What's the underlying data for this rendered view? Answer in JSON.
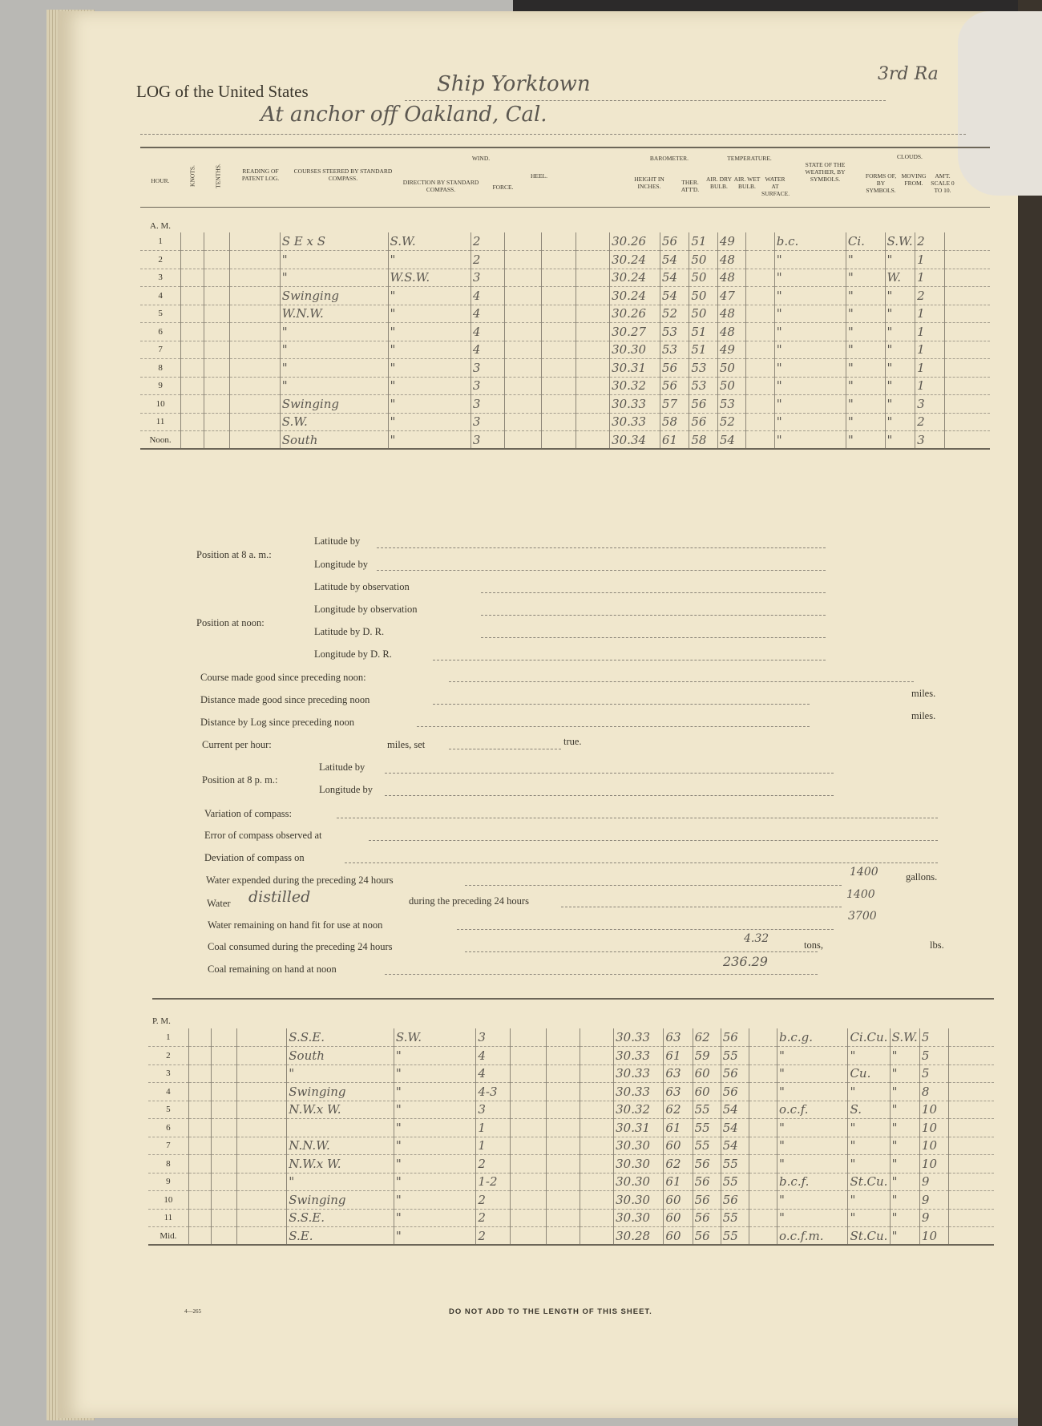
{
  "header": {
    "log_of": "LOG of the United States",
    "ship": "Ship Yorktown",
    "rate": "3rd Ra",
    "location": "At anchor off Oakland, Cal."
  },
  "columns": {
    "hour": "Hour.",
    "knots": "Knots.",
    "tenths": "Tenths.",
    "patent_log": "Reading of Patent Log.",
    "courses": "Courses steered by standard compass.",
    "wind": "Wind.",
    "direction": "Direction by standard compass.",
    "force": "Force.",
    "heel": "Heel.",
    "barometer": "Barometer.",
    "height": "Height in inches.",
    "ther": "Ther. att'd.",
    "temperature": "Temperature.",
    "dry": "Air. dry bulb.",
    "wet": "Air. wet bulb.",
    "water": "Water at surface.",
    "weather": "State of the weather, by symbols.",
    "clouds": "Clouds.",
    "forms": "Forms of, by symbols.",
    "moving": "Moving from.",
    "amt": "Am't. scale 0 to 10."
  },
  "am": {
    "label": "A. M.",
    "rows": [
      [
        "1",
        "S E x S",
        "S.W.",
        "2",
        "30.26",
        "56",
        "51",
        "49",
        "",
        "b.c.",
        "Ci.",
        "S.W.",
        "2"
      ],
      [
        "2",
        "\"",
        "\"",
        "2",
        "30.24",
        "54",
        "50",
        "48",
        "",
        "\"",
        "\"",
        "\"",
        "1"
      ],
      [
        "3",
        "\"",
        "W.S.W.",
        "3",
        "30.24",
        "54",
        "50",
        "48",
        "",
        "\"",
        "\"",
        "W.",
        "1"
      ],
      [
        "4",
        "Swinging",
        "\"",
        "4",
        "30.24",
        "54",
        "50",
        "47",
        "",
        "\"",
        "\"",
        "\"",
        "2"
      ],
      [
        "5",
        "W.N.W.",
        "\"",
        "4",
        "30.26",
        "52",
        "50",
        "48",
        "",
        "\"",
        "\"",
        "\"",
        "1"
      ],
      [
        "6",
        "\"",
        "\"",
        "4",
        "30.27",
        "53",
        "51",
        "48",
        "",
        "\"",
        "\"",
        "\"",
        "1"
      ],
      [
        "7",
        "\"",
        "\"",
        "4",
        "30.30",
        "53",
        "51",
        "49",
        "",
        "\"",
        "\"",
        "\"",
        "1"
      ],
      [
        "8",
        "\"",
        "\"",
        "3",
        "30.31",
        "56",
        "53",
        "50",
        "",
        "\"",
        "\"",
        "\"",
        "1"
      ],
      [
        "9",
        "\"",
        "\"",
        "3",
        "30.32",
        "56",
        "53",
        "50",
        "",
        "\"",
        "\"",
        "\"",
        "1"
      ],
      [
        "10",
        "Swinging",
        "\"",
        "3",
        "30.33",
        "57",
        "56",
        "53",
        "",
        "\"",
        "\"",
        "\"",
        "3"
      ],
      [
        "11",
        "S.W.",
        "\"",
        "3",
        "30.33",
        "58",
        "56",
        "52",
        "",
        "\"",
        "\"",
        "\"",
        "2"
      ],
      [
        "Noon.",
        "South",
        "\"",
        "3",
        "30.34",
        "61",
        "58",
        "54",
        "",
        "\"",
        "\"",
        "\"",
        "3"
      ]
    ]
  },
  "position_8am": {
    "label": "Position at 8 a. m.:",
    "lat": "Latitude by",
    "lon": "Longitude by"
  },
  "position_noon": {
    "label": "Position at noon:",
    "items": [
      "Latitude by observation",
      "Longitude by observation",
      "Latitude by D. R.",
      "Longitude by D. R."
    ]
  },
  "form_lines": {
    "course": "Course made good since preceding noon:",
    "distance": "Distance made good since preceding noon",
    "distance_log": "Distance by Log since preceding noon",
    "miles": "miles.",
    "current": "Current per hour:",
    "miles_set": "miles, set",
    "true": "true.",
    "pos8pm": "Position at 8 p. m.:",
    "lat": "Latitude by",
    "lon": "Longitude by",
    "variation": "Variation of compass:",
    "error": "Error of compass observed at",
    "deviation": "Deviation of compass on",
    "water_exp": "Water expended during the preceding 24 hours",
    "water_exp_val": "1400",
    "gallons": "gallons.",
    "water": "Water",
    "distilled": "distilled",
    "water_dist": "during the preceding 24 hours",
    "water_dist_val": "1400",
    "water_rem": "Water remaining on hand fit for use at noon",
    "water_rem_val": "3700",
    "coal_cons": "Coal consumed during the preceding 24 hours",
    "coal_cons_val": "4.32",
    "tons": "tons,",
    "lbs": "lbs.",
    "coal_rem": "Coal remaining on hand at noon",
    "coal_rem_val": "236.29",
    "ditto": "\""
  },
  "pm": {
    "label": "P. M.",
    "rows": [
      [
        "1",
        "S.S.E.",
        "S.W.",
        "3",
        "30.33",
        "63",
        "62",
        "56",
        "",
        "b.c.g.",
        "Ci.Cu.",
        "S.W.",
        "5"
      ],
      [
        "2",
        "South",
        "\"",
        "4",
        "30.33",
        "61",
        "59",
        "55",
        "",
        "\"",
        "\"",
        "\"",
        "5"
      ],
      [
        "3",
        "\"",
        "\"",
        "4",
        "30.33",
        "63",
        "60",
        "56",
        "",
        "\"",
        "Cu.",
        "\"",
        "5"
      ],
      [
        "4",
        "Swinging",
        "\"",
        "4-3",
        "30.33",
        "63",
        "60",
        "56",
        "",
        "\"",
        "\"",
        "\"",
        "8"
      ],
      [
        "5",
        "N.W.x W.",
        "\"",
        "3",
        "30.32",
        "62",
        "55",
        "54",
        "",
        "o.c.f.",
        "S.",
        "\"",
        "10"
      ],
      [
        "6",
        "",
        "\"",
        "1",
        "30.31",
        "61",
        "55",
        "54",
        "",
        "\"",
        "\"",
        "\"",
        "10"
      ],
      [
        "7",
        "N.N.W.",
        "\"",
        "1",
        "30.30",
        "60",
        "55",
        "54",
        "",
        "\"",
        "\"",
        "\"",
        "10"
      ],
      [
        "8",
        "N.W.x W.",
        "\"",
        "2",
        "30.30",
        "62",
        "56",
        "55",
        "",
        "\"",
        "\"",
        "\"",
        "10"
      ],
      [
        "9",
        "\"",
        "\"",
        "1-2",
        "30.30",
        "61",
        "56",
        "55",
        "",
        "b.c.f.",
        "St.Cu.",
        "\"",
        "9"
      ],
      [
        "10",
        "Swinging",
        "\"",
        "2",
        "30.30",
        "60",
        "56",
        "56",
        "",
        "\"",
        "\"",
        "\"",
        "9"
      ],
      [
        "11",
        "S.S.E.",
        "\"",
        "2",
        "30.30",
        "60",
        "56",
        "55",
        "",
        "\"",
        "\"",
        "\"",
        "9"
      ],
      [
        "Mid.",
        "S.E.",
        "\"",
        "2",
        "30.28",
        "60",
        "56",
        "55",
        "",
        "o.c.f.m.",
        "St.Cu.",
        "\"",
        "10"
      ]
    ]
  },
  "footer": {
    "notice": "DO NOT ADD TO THE LENGTH OF THIS SHEET.",
    "form_no": "4—265"
  }
}
